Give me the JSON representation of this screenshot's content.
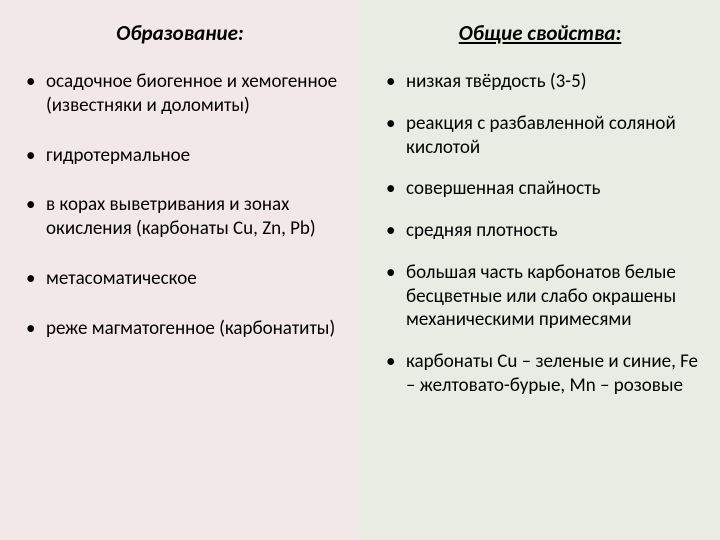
{
  "left": {
    "heading": "Образование:",
    "items": [
      "осадочное биогенное и хемогенное (известняки и доломиты)",
      "гидротермальное",
      "в корах выветривания и зонах окисления (карбонаты Cu, Zn, Pb)",
      "метасоматическое",
      " реже магматогенное (карбонатиты)"
    ]
  },
  "right": {
    "heading": "Общие свойства:",
    "items": [
      "низкая твёрдость (3-5)",
      "реакция с разбавленной соляной кислотой",
      "совершенная спайность",
      "средняя плотность",
      "большая часть карбонатов белые бесцветные или слабо окрашены механическими примесями",
      "карбонаты Cu – зеленые и синие, Fe – желтовато-бурые, Mn – розовые"
    ]
  },
  "styling": {
    "left_bg": "#f2e8e8",
    "right_bg": "#e8ece2",
    "heading_fontsize": 21,
    "item_fontsize": 19,
    "text_color": "#000000",
    "font_family": "Calibri"
  }
}
